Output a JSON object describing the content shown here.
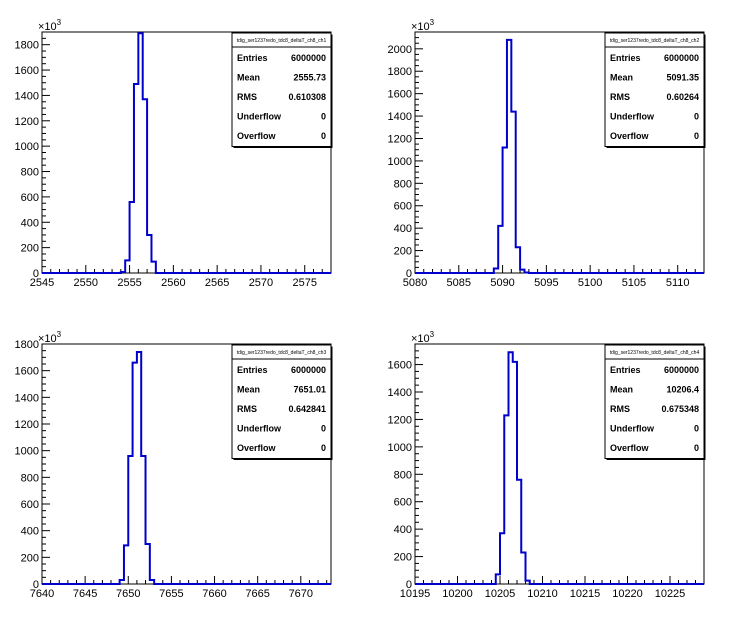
{
  "chart_data": [
    {
      "type": "bar",
      "title": "tdig_ser1237redo_tdc8_deltaT_ch8_ch1",
      "y_multiplier": "×10",
      "y_multiplier_exp": "3",
      "xlim": [
        2545,
        2578
      ],
      "ylim": [
        0,
        1900
      ],
      "xticks": [
        "2545",
        "2550",
        "2555",
        "2560",
        "2565",
        "2570",
        "2575"
      ],
      "yticks": [
        "0",
        "200",
        "400",
        "600",
        "800",
        "1000",
        "1200",
        "1400",
        "1600",
        "1800"
      ],
      "bin_width": 0.5,
      "bins_x": [
        2554,
        2554.5,
        2555,
        2555.5,
        2556,
        2556.5,
        2557,
        2557.5
      ],
      "values": [
        8,
        100,
        560,
        1490,
        1890,
        1370,
        300,
        90
      ],
      "stats": [
        {
          "label": "Entries",
          "value": "6000000"
        },
        {
          "label": "Mean",
          "value": "2555.73"
        },
        {
          "label": "RMS",
          "value": "0.610308"
        },
        {
          "label": "Underflow",
          "value": "0"
        },
        {
          "label": "Overflow",
          "value": "0"
        }
      ]
    },
    {
      "type": "bar",
      "title": "tdig_ser1237redo_tdc8_deltaT_ch8_ch2",
      "y_multiplier": "×10",
      "y_multiplier_exp": "3",
      "xlim": [
        5080,
        5113
      ],
      "ylim": [
        0,
        2150
      ],
      "xticks": [
        "5080",
        "5085",
        "5090",
        "5095",
        "5100",
        "5105",
        "5110"
      ],
      "yticks": [
        "0",
        "200",
        "400",
        "600",
        "800",
        "1000",
        "1200",
        "1400",
        "1600",
        "1800",
        "2000"
      ],
      "bin_width": 0.5,
      "bins_x": [
        5089,
        5089.5,
        5090,
        5090.5,
        5091,
        5091.5,
        5092,
        5092.5
      ],
      "values": [
        40,
        420,
        1120,
        2080,
        1440,
        230,
        30,
        5
      ],
      "stats": [
        {
          "label": "Entries",
          "value": "6000000"
        },
        {
          "label": "Mean",
          "value": "5091.35"
        },
        {
          "label": "RMS",
          "value": "0.60264"
        },
        {
          "label": "Underflow",
          "value": "0"
        },
        {
          "label": "Overflow",
          "value": "0"
        }
      ]
    },
    {
      "type": "bar",
      "title": "tdig_ser1237redo_tdc8_deltaT_ch8_ch3",
      "y_multiplier": "×10",
      "y_multiplier_exp": "3",
      "xlim": [
        7640,
        7673.5
      ],
      "ylim": [
        0,
        1800
      ],
      "xticks": [
        "7640",
        "7645",
        "7650",
        "7655",
        "7660",
        "7665",
        "7670"
      ],
      "yticks": [
        "0",
        "200",
        "400",
        "600",
        "800",
        "1000",
        "1200",
        "1400",
        "1600",
        "1800"
      ],
      "bin_width": 0.5,
      "bins_x": [
        7649,
        7649.5,
        7650,
        7650.5,
        7651,
        7651.5,
        7652,
        7652.5
      ],
      "values": [
        30,
        290,
        960,
        1660,
        1740,
        960,
        300,
        30
      ],
      "stats": [
        {
          "label": "Entries",
          "value": "6000000"
        },
        {
          "label": "Mean",
          "value": "7651.01"
        },
        {
          "label": "RMS",
          "value": "0.642841"
        },
        {
          "label": "Underflow",
          "value": "0"
        },
        {
          "label": "Overflow",
          "value": "0"
        }
      ]
    },
    {
      "type": "bar",
      "title": "tdig_ser1237redo_tdc8_deltaT_ch8_ch4",
      "y_multiplier": "×10",
      "y_multiplier_exp": "3",
      "xlim": [
        10195,
        10229
      ],
      "ylim": [
        0,
        1750
      ],
      "xticks": [
        "10195",
        "10200",
        "10205",
        "10210",
        "10215",
        "10220",
        "10225"
      ],
      "yticks": [
        "0",
        "200",
        "400",
        "600",
        "800",
        "1000",
        "1200",
        "1400",
        "1600"
      ],
      "bin_width": 0.5,
      "bins_x": [
        10204.5,
        10205,
        10205.5,
        10206,
        10206.5,
        10207,
        10207.5,
        10208
      ],
      "values": [
        70,
        370,
        1230,
        1690,
        1620,
        760,
        230,
        25
      ],
      "stats": [
        {
          "label": "Entries",
          "value": "6000000"
        },
        {
          "label": "Mean",
          "value": "10206.4"
        },
        {
          "label": "RMS",
          "value": "0.675348"
        },
        {
          "label": "Underflow",
          "value": "0"
        },
        {
          "label": "Overflow",
          "value": "0"
        }
      ]
    }
  ]
}
